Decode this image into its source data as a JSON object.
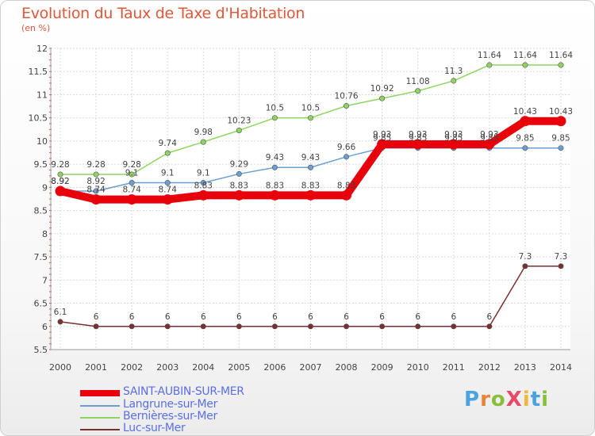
{
  "title": "Evolution du Taux de Taxe d'Habitation",
  "unit": "(en %)",
  "logo": {
    "text": "ProXiti",
    "colors": [
      "#4aa3df",
      "#e8833a",
      "#8bbd3c",
      "#e84a6a",
      "#f2b63c",
      "#4aa3df",
      "#8bbd3c"
    ]
  },
  "chart_data": {
    "type": "line",
    "title": "Evolution du Taux de Taxe d'Habitation",
    "ylabel": "(en %)",
    "xlabel": "",
    "ylim": [
      5.5,
      12
    ],
    "yticks": [
      "5.5",
      "6",
      "6.5",
      "7",
      "7.5",
      "8",
      "8.5",
      "9",
      "9.5",
      "10",
      "10.5",
      "11",
      "11.5",
      "12"
    ],
    "x": [
      "2000",
      "2001",
      "2002",
      "2003",
      "2004",
      "2005",
      "2006",
      "2007",
      "2008",
      "2009",
      "2010",
      "2011",
      "2012",
      "2013",
      "2014"
    ],
    "grid": true,
    "legend_position": "bottom-left",
    "series": [
      {
        "name": "SAINT-AUBIN-SUR-MER",
        "color": "#e8000b",
        "label_color": "#5b6ee8",
        "bold": true,
        "values": [
          8.92,
          8.74,
          8.74,
          8.74,
          8.83,
          8.83,
          8.83,
          8.83,
          8.83,
          9.93,
          9.93,
          9.93,
          9.93,
          10.43,
          10.43
        ],
        "labels": [
          "8.92",
          "8.74",
          "8.74",
          "8.74",
          "8.83",
          "8.83",
          "8.83",
          "8.83",
          "8.83",
          "9.93",
          "9.93",
          "9.93",
          "9.93",
          "10.43",
          "10.43"
        ]
      },
      {
        "name": "Langrune-sur-Mer",
        "color": "#6c9ed1",
        "label_color": "#5b6ee8",
        "bold": false,
        "values": [
          8.92,
          8.92,
          9.1,
          9.1,
          9.1,
          9.29,
          9.43,
          9.43,
          9.66,
          9.85,
          9.85,
          9.85,
          9.85,
          9.85,
          9.85
        ],
        "labels": [
          "8.92",
          "8.92",
          "9.1",
          "9.1",
          "9.1",
          "9.29",
          "9.43",
          "9.43",
          "9.66",
          "9.85",
          "9.85",
          "9.85",
          "9.85",
          "9.85",
          "9.85"
        ]
      },
      {
        "name": "Bernières-sur-Mer",
        "color": "#8fd460",
        "label_color": "#5b6ee8",
        "bold": false,
        "values": [
          9.28,
          9.28,
          9.28,
          9.74,
          9.98,
          10.23,
          10.5,
          10.5,
          10.76,
          10.92,
          11.08,
          11.3,
          11.64,
          11.64,
          11.64
        ],
        "labels": [
          "9.28",
          "9.28",
          "9.28",
          "9.74",
          "9.98",
          "10.23",
          "10.5",
          "10.5",
          "10.76",
          "10.92",
          "11.08",
          "11.3",
          "11.64",
          "11.64",
          "11.64"
        ]
      },
      {
        "name": "Luc-sur-Mer",
        "color": "#7a2f30",
        "label_color": "#5b6ee8",
        "bold": false,
        "values": [
          6.1,
          6,
          6,
          6,
          6,
          6,
          6,
          6,
          6,
          6,
          6,
          6,
          6,
          7.3,
          7.3
        ],
        "labels": [
          "6.1",
          "6",
          "6",
          "6",
          "6",
          "6",
          "6",
          "6",
          "6",
          "6",
          "6",
          "6",
          "6",
          "7.3",
          "7.3"
        ]
      }
    ]
  }
}
